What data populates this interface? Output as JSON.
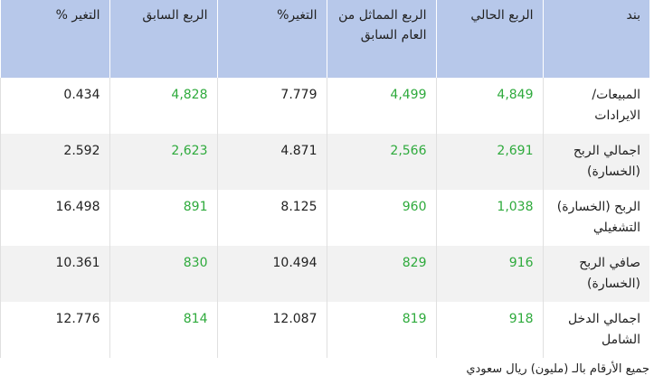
{
  "table": {
    "header": [
      "بند",
      "الربع الحالي",
      "الربع المماثل من العام السابق",
      "التغير%",
      "الربع السابق",
      "التغير %"
    ],
    "rows": [
      [
        "المبيعات/ الايرادات",
        "4,849",
        "4,499",
        "7.779",
        "4,828",
        "0.434"
      ],
      [
        "اجمالي الربح (الخسارة)",
        "2,691",
        "2,566",
        "4.871",
        "2,623",
        "2.592"
      ],
      [
        "الربح (الخسارة) التشغيلي",
        "1,038",
        "960",
        "8.125",
        "891",
        "16.498"
      ],
      [
        "صافي الربح (الخسارة)",
        "916",
        "829",
        "10.494",
        "830",
        "10.361"
      ],
      [
        "اجمالي الدخل الشامل",
        "918",
        "819",
        "12.087",
        "814",
        "12.776"
      ]
    ]
  },
  "footnote": "جميع الأرقام بالـ (مليون) ريال سعودي"
}
